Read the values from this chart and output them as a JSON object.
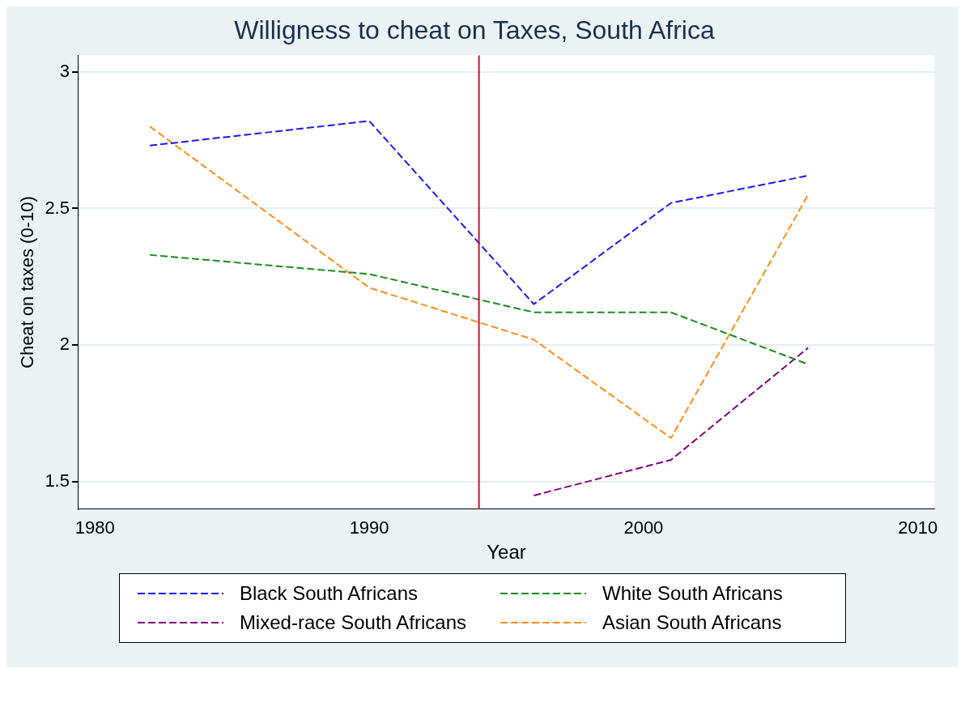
{
  "chart_data": {
    "type": "line",
    "title": "Willigness to cheat on Taxes, South Africa",
    "xlabel": "Year",
    "ylabel": "Cheat on taxes (0-10)",
    "x": [
      1982,
      1990,
      1996,
      2001,
      2006
    ],
    "series": [
      {
        "name": "Black South Africans",
        "color": "#1a1aff",
        "values": [
          2.73,
          2.82,
          2.15,
          2.52,
          2.62
        ]
      },
      {
        "name": "White South Africans",
        "color": "#1a8c1a",
        "values": [
          2.33,
          2.26,
          2.12,
          2.12,
          1.93
        ]
      },
      {
        "name": "Mixed-race South Africans",
        "color": "#800080",
        "x": [
          1996,
          2001,
          2006
        ],
        "values": [
          1.45,
          1.58,
          1.99
        ]
      },
      {
        "name": "Asian South Africans",
        "color": "#ff8c1a",
        "values": [
          2.8,
          2.21,
          2.02,
          1.66,
          2.55
        ]
      }
    ],
    "xlim": [
      1979.4,
      2010.6
    ],
    "xticks": [
      1980,
      1990,
      2000,
      2010
    ],
    "ylim": [
      1.4,
      3.06
    ],
    "yticks": [
      {
        "value": 1.5,
        "label": "1.5"
      },
      {
        "value": 2,
        "label": "2"
      },
      {
        "value": 2.5,
        "label": "2.5"
      },
      {
        "value": 3,
        "label": "3"
      }
    ],
    "ref_lines": [
      {
        "axis": "x",
        "value": 1994,
        "color": "#c0143c"
      }
    ],
    "grid": "y",
    "legend": "bottom",
    "line_style": "dashed"
  }
}
